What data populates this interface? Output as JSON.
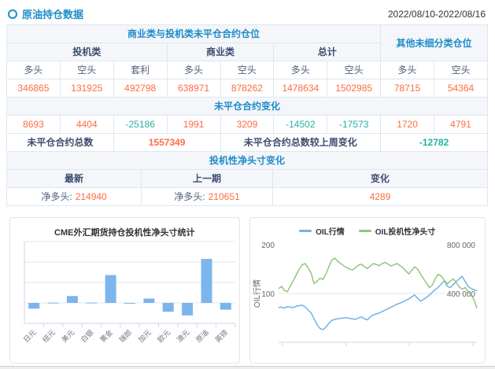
{
  "header": {
    "title": "原油持仓数据",
    "date_range": "2022/08/10-2022/08/16"
  },
  "colors": {
    "accent_blue": "#1d8cc8",
    "navy": "#3d4d6e",
    "positive_orange": "#fe6c3f",
    "negative_teal": "#23b1a4",
    "bar_blue": "#7cb5ec",
    "line_blue": "#72b2e4",
    "line_green": "#8fc87b"
  },
  "position_table": {
    "group_header_main": "商业类与投机类未平仓合约仓位",
    "group_header_other": "其他未细分类仓位",
    "subgroups": [
      "投机类",
      "商业类",
      "总计"
    ],
    "col_headers": [
      "多头",
      "空头",
      "套利",
      "多头",
      "空头",
      "多头",
      "空头",
      "多头",
      "空头"
    ],
    "open_interest": [
      "346865",
      "131925",
      "492798",
      "638971",
      "878262",
      "1478634",
      "1502985",
      "78715",
      "54364"
    ],
    "change_header": "未平仓合约变化",
    "changes": [
      "8693",
      "4404",
      "-25186",
      "1991",
      "3209",
      "-14502",
      "-17573",
      "1720",
      "4791"
    ],
    "total_label": "未平仓合约总数",
    "total_value": "1557349",
    "total_change_label": "未平仓合约总数较上周变化",
    "total_change_value": "-12782",
    "net_section_header": "投机性净头寸变化",
    "net_headers": [
      "最新",
      "上一期",
      "变化"
    ],
    "net_latest_label": "净多头:",
    "net_latest_value": "214940",
    "net_prev_label": "净多头:",
    "net_prev_value": "210651",
    "net_change_value": "4289"
  },
  "chart_data": [
    {
      "type": "bar",
      "title": "CME外汇期货持仓投机性净头寸统计",
      "categories": [
        "日元",
        "纽元",
        "美元",
        "白银",
        "黄金",
        "瑞郎",
        "加元",
        "欧元",
        "澳元",
        "原油",
        "英镑"
      ],
      "values": [
        -28000,
        1000,
        34000,
        1500,
        136000,
        -4000,
        21000,
        -43000,
        -61000,
        214940,
        -33000
      ],
      "ylim": [
        -100000,
        300000
      ],
      "grid_interval": 100000,
      "yaxis_labels_visible": false,
      "bar_color": "#7cb5ec",
      "legend_position": "none"
    },
    {
      "type": "line",
      "title": "",
      "legend_position": "top",
      "left_axis": {
        "title": "OIL行情",
        "min": 0,
        "max": 200,
        "tick_labels": [
          "200",
          "100"
        ]
      },
      "right_axis": {
        "title": "",
        "min": 0,
        "max": 800000,
        "tick_labels": [
          "800 000",
          "400 000"
        ]
      },
      "x_tick_count": 4,
      "grid": "horizontal-mid",
      "series": [
        {
          "name": "OIL行情",
          "axis": "left",
          "color": "#72b2e4",
          "values": [
            71,
            72,
            70,
            73,
            72,
            71,
            74,
            75,
            76,
            72,
            66,
            60,
            48,
            36,
            28,
            26,
            31,
            39,
            45,
            47,
            48,
            49,
            50,
            50,
            49,
            48,
            47,
            50,
            52,
            48,
            46,
            52,
            56,
            58,
            60,
            63,
            66,
            69,
            72,
            75,
            78,
            80,
            83,
            86,
            89,
            93,
            97,
            90,
            84,
            88,
            92,
            97,
            103,
            108,
            113,
            120,
            126,
            115,
            112,
            118,
            124,
            130,
            135,
            125,
            115,
            110,
            108,
            105
          ]
        },
        {
          "name": "OIL投机性净头寸",
          "axis": "right",
          "color": "#8fc87b",
          "values": [
            440000,
            458000,
            425000,
            415000,
            462000,
            505000,
            555000,
            600000,
            635000,
            645000,
            610000,
            565000,
            480000,
            500000,
            525000,
            515000,
            560000,
            620000,
            675000,
            690000,
            662000,
            645000,
            628000,
            612000,
            600000,
            592000,
            612000,
            632000,
            640000,
            618000,
            605000,
            625000,
            645000,
            638000,
            628000,
            645000,
            655000,
            640000,
            625000,
            635000,
            645000,
            630000,
            610000,
            585000,
            560000,
            590000,
            618000,
            598000,
            558000,
            520000,
            482000,
            448000,
            470000,
            525000,
            558000,
            542000,
            508000,
            478000,
            500000,
            520000,
            490000,
            455000,
            435000,
            450000,
            418000,
            385000,
            352000,
            278000
          ]
        }
      ]
    }
  ]
}
